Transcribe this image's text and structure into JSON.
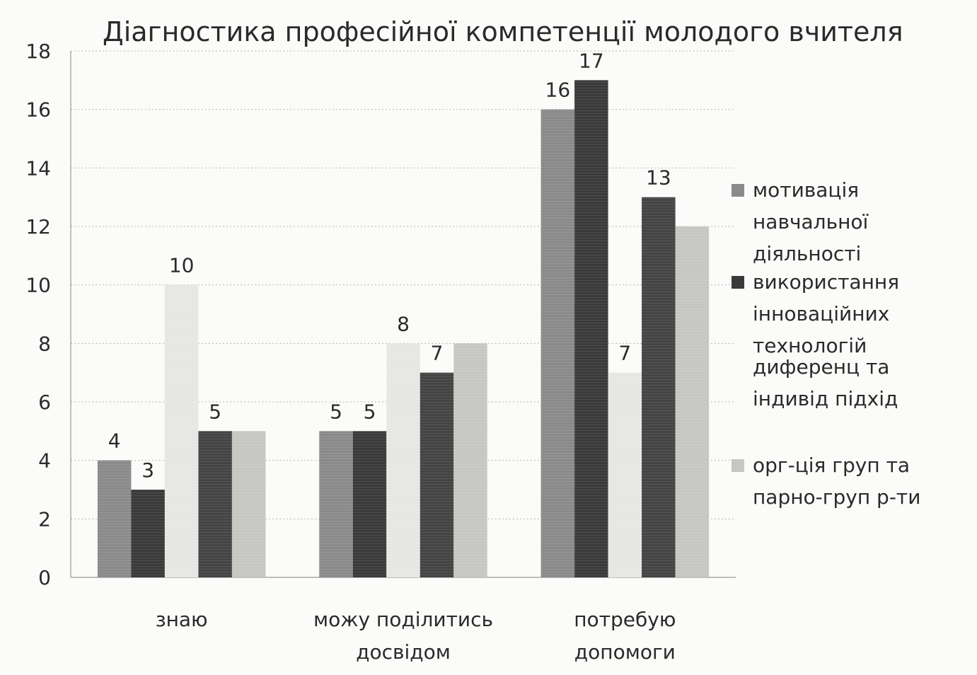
{
  "chart_data": {
    "type": "bar",
    "title": "Діагностика професійної компетенції молодого вчителя",
    "categories": [
      [
        "знаю"
      ],
      [
        "можу поділитись",
        "досвідом"
      ],
      [
        "потребую",
        "допомоги"
      ]
    ],
    "ylim": [
      0,
      18
    ],
    "yticks": [
      0,
      2,
      4,
      6,
      8,
      10,
      12,
      14,
      16,
      18
    ],
    "grid": true,
    "legend_position": "right",
    "series": [
      {
        "name": [
          "мотивація",
          "навчальної",
          "діяльності"
        ],
        "values": [
          4,
          5,
          16
        ],
        "color": "#8a8a8a",
        "labels": [
          "4",
          "5",
          "16"
        ]
      },
      {
        "name": [
          "використання",
          "інноваційних",
          "технологій"
        ],
        "values": [
          3,
          5,
          17
        ],
        "color": "#3a3a3a",
        "labels": [
          "3",
          "5",
          "17"
        ]
      },
      {
        "name": null,
        "values": [
          10,
          8,
          7
        ],
        "color": "#e6e6e2",
        "labels": [
          "10",
          "8",
          "7"
        ]
      },
      {
        "name": [
          "диференц та",
          "індивід підхід"
        ],
        "values": [
          5,
          7,
          13
        ],
        "color": "#444444",
        "labels": [
          "5",
          "7",
          "13"
        ]
      },
      {
        "name": [
          "орг-ція груп та",
          "парно-груп р-ти"
        ],
        "values": [
          5,
          8,
          12
        ],
        "color": "#c6c6c3",
        "labels": [
          "",
          "",
          ""
        ]
      }
    ]
  }
}
